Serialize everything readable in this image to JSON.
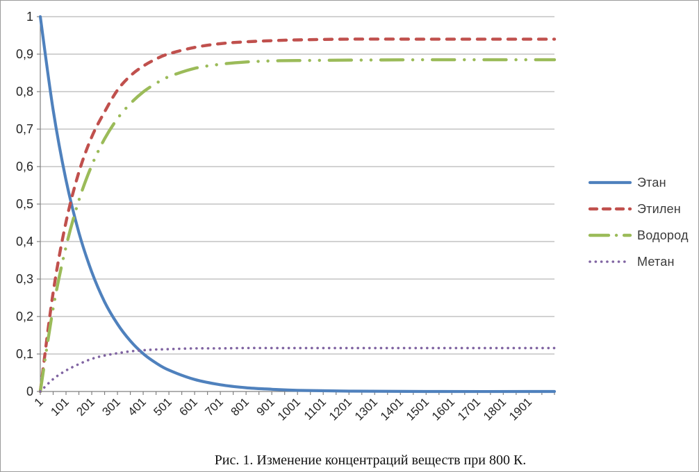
{
  "figure": {
    "caption": "Рис. 1. Изменение концентраций веществ при 800 К."
  },
  "chart_data": {
    "type": "line",
    "title": "",
    "xlabel": "",
    "ylabel": "",
    "grid": "horizontal",
    "legend_position": "right",
    "x_axis": {
      "min": 1,
      "max": 2000,
      "tick_step": 100,
      "minor_tick_step": 50,
      "tick_labels": [
        "1",
        "101",
        "201",
        "301",
        "401",
        "501",
        "601",
        "701",
        "801",
        "901",
        "1001",
        "1101",
        "1201",
        "1301",
        "1401",
        "1501",
        "1601",
        "1701",
        "1801",
        "1901"
      ]
    },
    "y_axis": {
      "min": 0,
      "max": 1,
      "tick_step": 0.1,
      "tick_labels": [
        "0",
        "0,1",
        "0,2",
        "0,3",
        "0,4",
        "0,5",
        "0,6",
        "0,7",
        "0,8",
        "0,9",
        "1"
      ]
    },
    "series": [
      {
        "key": "ethane",
        "name": "Этан",
        "color": "#4F81BD",
        "style": "solid",
        "points": [
          [
            1,
            1.0
          ],
          [
            51,
            0.751
          ],
          [
            101,
            0.564
          ],
          [
            151,
            0.424
          ],
          [
            201,
            0.319
          ],
          [
            251,
            0.239
          ],
          [
            301,
            0.18
          ],
          [
            351,
            0.135
          ],
          [
            401,
            0.101
          ],
          [
            451,
            0.076
          ],
          [
            501,
            0.057
          ],
          [
            601,
            0.032
          ],
          [
            701,
            0.018
          ],
          [
            801,
            0.01
          ],
          [
            901,
            0.006
          ],
          [
            1001,
            0.003
          ],
          [
            1201,
            0.001
          ],
          [
            1501,
            0.0
          ],
          [
            2000,
            0.0
          ]
        ]
      },
      {
        "key": "ethylene",
        "name": "Этилен",
        "color": "#C0504D",
        "style": "dashed",
        "points": [
          [
            1,
            0.0
          ],
          [
            51,
            0.264
          ],
          [
            101,
            0.452
          ],
          [
            151,
            0.585
          ],
          [
            201,
            0.679
          ],
          [
            251,
            0.746
          ],
          [
            301,
            0.804
          ],
          [
            351,
            0.842
          ],
          [
            401,
            0.868
          ],
          [
            451,
            0.887
          ],
          [
            501,
            0.901
          ],
          [
            601,
            0.918
          ],
          [
            701,
            0.928
          ],
          [
            801,
            0.933
          ],
          [
            901,
            0.936
          ],
          [
            1001,
            0.938
          ],
          [
            1201,
            0.94
          ],
          [
            1501,
            0.94
          ],
          [
            2000,
            0.94
          ]
        ]
      },
      {
        "key": "hydrogen",
        "name": "Водород",
        "color": "#9BBB59",
        "style": "long-dash-dot-dot",
        "points": [
          [
            1,
            0.0
          ],
          [
            51,
            0.222
          ],
          [
            101,
            0.386
          ],
          [
            151,
            0.51
          ],
          [
            201,
            0.603
          ],
          [
            251,
            0.674
          ],
          [
            301,
            0.728
          ],
          [
            351,
            0.768
          ],
          [
            401,
            0.799
          ],
          [
            451,
            0.822
          ],
          [
            501,
            0.84
          ],
          [
            601,
            0.862
          ],
          [
            701,
            0.873
          ],
          [
            801,
            0.879
          ],
          [
            901,
            0.882
          ],
          [
            1001,
            0.883
          ],
          [
            1201,
            0.884
          ],
          [
            1501,
            0.885
          ],
          [
            2000,
            0.885
          ]
        ]
      },
      {
        "key": "methane",
        "name": "Метан",
        "color": "#8064A2",
        "style": "dotted",
        "points": [
          [
            1,
            0.0
          ],
          [
            51,
            0.033
          ],
          [
            101,
            0.056
          ],
          [
            151,
            0.073
          ],
          [
            201,
            0.087
          ],
          [
            251,
            0.096
          ],
          [
            301,
            0.102
          ],
          [
            351,
            0.107
          ],
          [
            401,
            0.11
          ],
          [
            451,
            0.112
          ],
          [
            501,
            0.113
          ],
          [
            601,
            0.115
          ],
          [
            701,
            0.115
          ],
          [
            801,
            0.116
          ],
          [
            901,
            0.116
          ],
          [
            1001,
            0.116
          ],
          [
            1201,
            0.116
          ],
          [
            1501,
            0.116
          ],
          [
            2000,
            0.116
          ]
        ]
      }
    ]
  }
}
